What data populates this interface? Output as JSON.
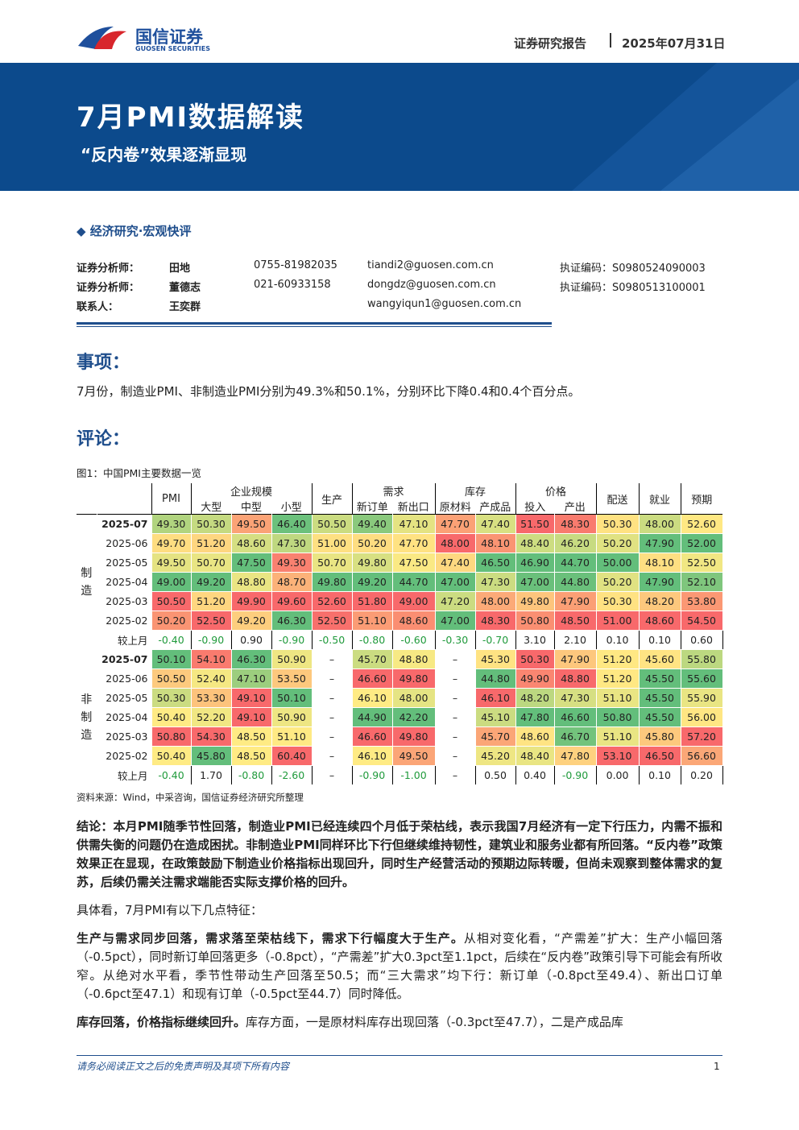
{
  "header": {
    "logo_cn": "国信证券",
    "logo_en": "GUOSEN SECURITIES",
    "report_type": "证券研究报告",
    "date": "2025年07月31日"
  },
  "banner": {
    "title": "7月PMI数据解读",
    "subtitle": "“反内卷”效果逐渐显现"
  },
  "category": "经济研究·宏观快评",
  "analysts": [
    {
      "role": "证券分析师：",
      "name": "田地",
      "phone": "0755-81982035",
      "email": "tiandi2@guosen.com.cn",
      "cert": "执证编码：S0980524090003"
    },
    {
      "role": "证券分析师：",
      "name": "董德志",
      "phone": "021-60933158",
      "email": "dongdz@guosen.com.cn",
      "cert": "执证编码：S0980513100001"
    },
    {
      "role": "联系人：",
      "name": "王奕群",
      "email": "wangyiqun1@guosen.com.cn"
    }
  ],
  "event": {
    "heading": "事项：",
    "text": "7月份，制造业PMI、非制造业PMI分别为49.3%和50.1%，分别环比下降0.4和0.4个百分点。"
  },
  "comment_heading": "评论：",
  "figure": {
    "caption": "图1：中国PMI主要数据一览",
    "top_headers": [
      {
        "label": "PMI",
        "span": 1
      },
      {
        "label": "企业规模",
        "span": 3
      },
      {
        "label": "生产",
        "span": 1
      },
      {
        "label": "需求",
        "span": 2
      },
      {
        "label": "库存",
        "span": 2
      },
      {
        "label": "价格",
        "span": 2
      },
      {
        "label": "配送",
        "span": 1
      },
      {
        "label": "就业",
        "span": 1
      },
      {
        "label": "预期",
        "span": 1
      }
    ],
    "sub_headers": [
      "大型",
      "中型",
      "小型",
      "新订单",
      "新出口",
      "原材料",
      "产成品",
      "投入",
      "产出"
    ],
    "groups": [
      {
        "label": "制造",
        "rows": [
          {
            "date": "2025-07",
            "cells": [
              "49.30",
              "50.30",
              "49.50",
              "46.40",
              "50.50",
              "49.40",
              "47.10",
              "47.70",
              "47.40",
              "51.50",
              "48.30",
              "50.30",
              "48.00",
              "52.60"
            ]
          },
          {
            "date": "2025-06",
            "cells": [
              "49.70",
              "51.20",
              "48.60",
              "47.30",
              "51.00",
              "50.20",
              "47.70",
              "48.00",
              "48.10",
              "48.40",
              "46.20",
              "50.20",
              "47.90",
              "52.00"
            ]
          },
          {
            "date": "2025-05",
            "cells": [
              "49.50",
              "50.70",
              "47.50",
              "49.30",
              "50.70",
              "49.80",
              "47.50",
              "47.40",
              "46.50",
              "46.90",
              "44.70",
              "50.00",
              "48.10",
              "52.50"
            ]
          },
          {
            "date": "2025-04",
            "cells": [
              "49.00",
              "49.20",
              "48.80",
              "48.70",
              "49.80",
              "49.20",
              "44.70",
              "47.00",
              "47.30",
              "47.00",
              "44.80",
              "50.20",
              "47.90",
              "52.10"
            ]
          },
          {
            "date": "2025-03",
            "cells": [
              "50.50",
              "51.20",
              "49.90",
              "49.60",
              "52.60",
              "51.80",
              "49.00",
              "47.20",
              "48.00",
              "49.80",
              "47.90",
              "50.30",
              "48.20",
              "53.80"
            ]
          },
          {
            "date": "2025-02",
            "cells": [
              "50.20",
              "52.50",
              "49.20",
              "46.30",
              "52.50",
              "51.10",
              "48.60",
              "47.00",
              "48.30",
              "50.80",
              "48.50",
              "51.00",
              "48.60",
              "54.50"
            ]
          }
        ],
        "change": {
          "date": "较上月",
          "cells": [
            "-0.40",
            "-0.90",
            "0.90",
            "-0.90",
            "-0.50",
            "-0.80",
            "-0.60",
            "-0.30",
            "-0.70",
            "3.10",
            "2.10",
            "0.10",
            "0.10",
            "0.60"
          ]
        }
      },
      {
        "label": "非制造",
        "rows": [
          {
            "date": "2025-07",
            "cells": [
              "50.10",
              "54.10",
              "46.30",
              "50.90",
              "–",
              "45.70",
              "48.80",
              "–",
              "45.30",
              "50.30",
              "47.90",
              "51.20",
              "45.60",
              "55.80"
            ]
          },
          {
            "date": "2025-06",
            "cells": [
              "50.50",
              "52.40",
              "47.10",
              "53.50",
              "–",
              "46.60",
              "49.80",
              "–",
              "44.80",
              "49.90",
              "48.80",
              "51.20",
              "45.50",
              "55.60"
            ]
          },
          {
            "date": "2025-05",
            "cells": [
              "50.30",
              "53.30",
              "49.10",
              "50.10",
              "–",
              "46.10",
              "48.00",
              "–",
              "46.10",
              "48.20",
              "47.30",
              "51.10",
              "45.50",
              "55.90"
            ]
          },
          {
            "date": "2025-04",
            "cells": [
              "50.40",
              "52.20",
              "49.10",
              "50.90",
              "–",
              "44.90",
              "42.20",
              "–",
              "45.10",
              "47.80",
              "46.60",
              "50.80",
              "45.50",
              "56.00"
            ]
          },
          {
            "date": "2025-03",
            "cells": [
              "50.80",
              "54.30",
              "48.50",
              "51.10",
              "–",
              "46.60",
              "49.80",
              "–",
              "45.70",
              "48.60",
              "46.70",
              "51.10",
              "45.80",
              "57.20"
            ]
          },
          {
            "date": "2025-02",
            "cells": [
              "50.40",
              "45.80",
              "48.50",
              "60.40",
              "–",
              "46.10",
              "49.50",
              "–",
              "45.20",
              "48.40",
              "47.80",
              "53.10",
              "46.50",
              "56.60"
            ]
          }
        ],
        "change": {
          "date": "较上月",
          "cells": [
            "-0.40",
            "1.70",
            "-0.80",
            "-2.60",
            "–",
            "-0.90",
            "-1.00",
            "–",
            "0.50",
            "0.40",
            "-0.90",
            "0.00",
            "0.10",
            "0.20"
          ]
        }
      }
    ],
    "source": "资料来源：Wind，中采咨询，国信证券经济研究所整理"
  },
  "paragraphs": [
    {
      "lead": "结论：本月PMI随季节性回落，制造业PMI已经连续四个月低于荣枯线，表示我国7月经济有一定下行压力，内需不振和供需失衡的问题仍在造成困扰。非制造业PMI同样环比下行但继续维持韧性，建筑业和服务业都有所回落。“反内卷”政策效果正在显现，在政策鼓励下制造业价格指标出现回升，同时生产经营活动的预期边际转暖，但尚未观察到整体需求的复苏，后续仍需关注需求端能否实际支撑价格的回升。"
    },
    {
      "text": "具体看，7月PMI有以下几点特征："
    },
    {
      "lead": "生产与需求同步回落，需求落至荣枯线下，需求下行幅度大于生产。",
      "text": "从相对变化看，“产需差”扩大：生产小幅回落（-0.5pct），同时新订单回落更多（-0.8pct），“产需差”扩大0.3pct至1.1pct，后续在“反内卷”政策引导下可能会有所收窄。从绝对水平看，季节性带动生产回落至50.5；而“三大需求”均下行：新订单（-0.8pct至49.4）、新出口订单（-0.6pct至47.1）和现有订单（-0.5pct至44.7）同时降低。"
    },
    {
      "lead": "库存回落，价格指标继续回升。",
      "text": "库存方面，一是原材料库存出现回落（-0.3pct至47.7），二是产成品库"
    }
  ],
  "footer": {
    "disclaimer": "请务必阅读正文之后的免责声明及其项下所有内容",
    "page": "1"
  }
}
